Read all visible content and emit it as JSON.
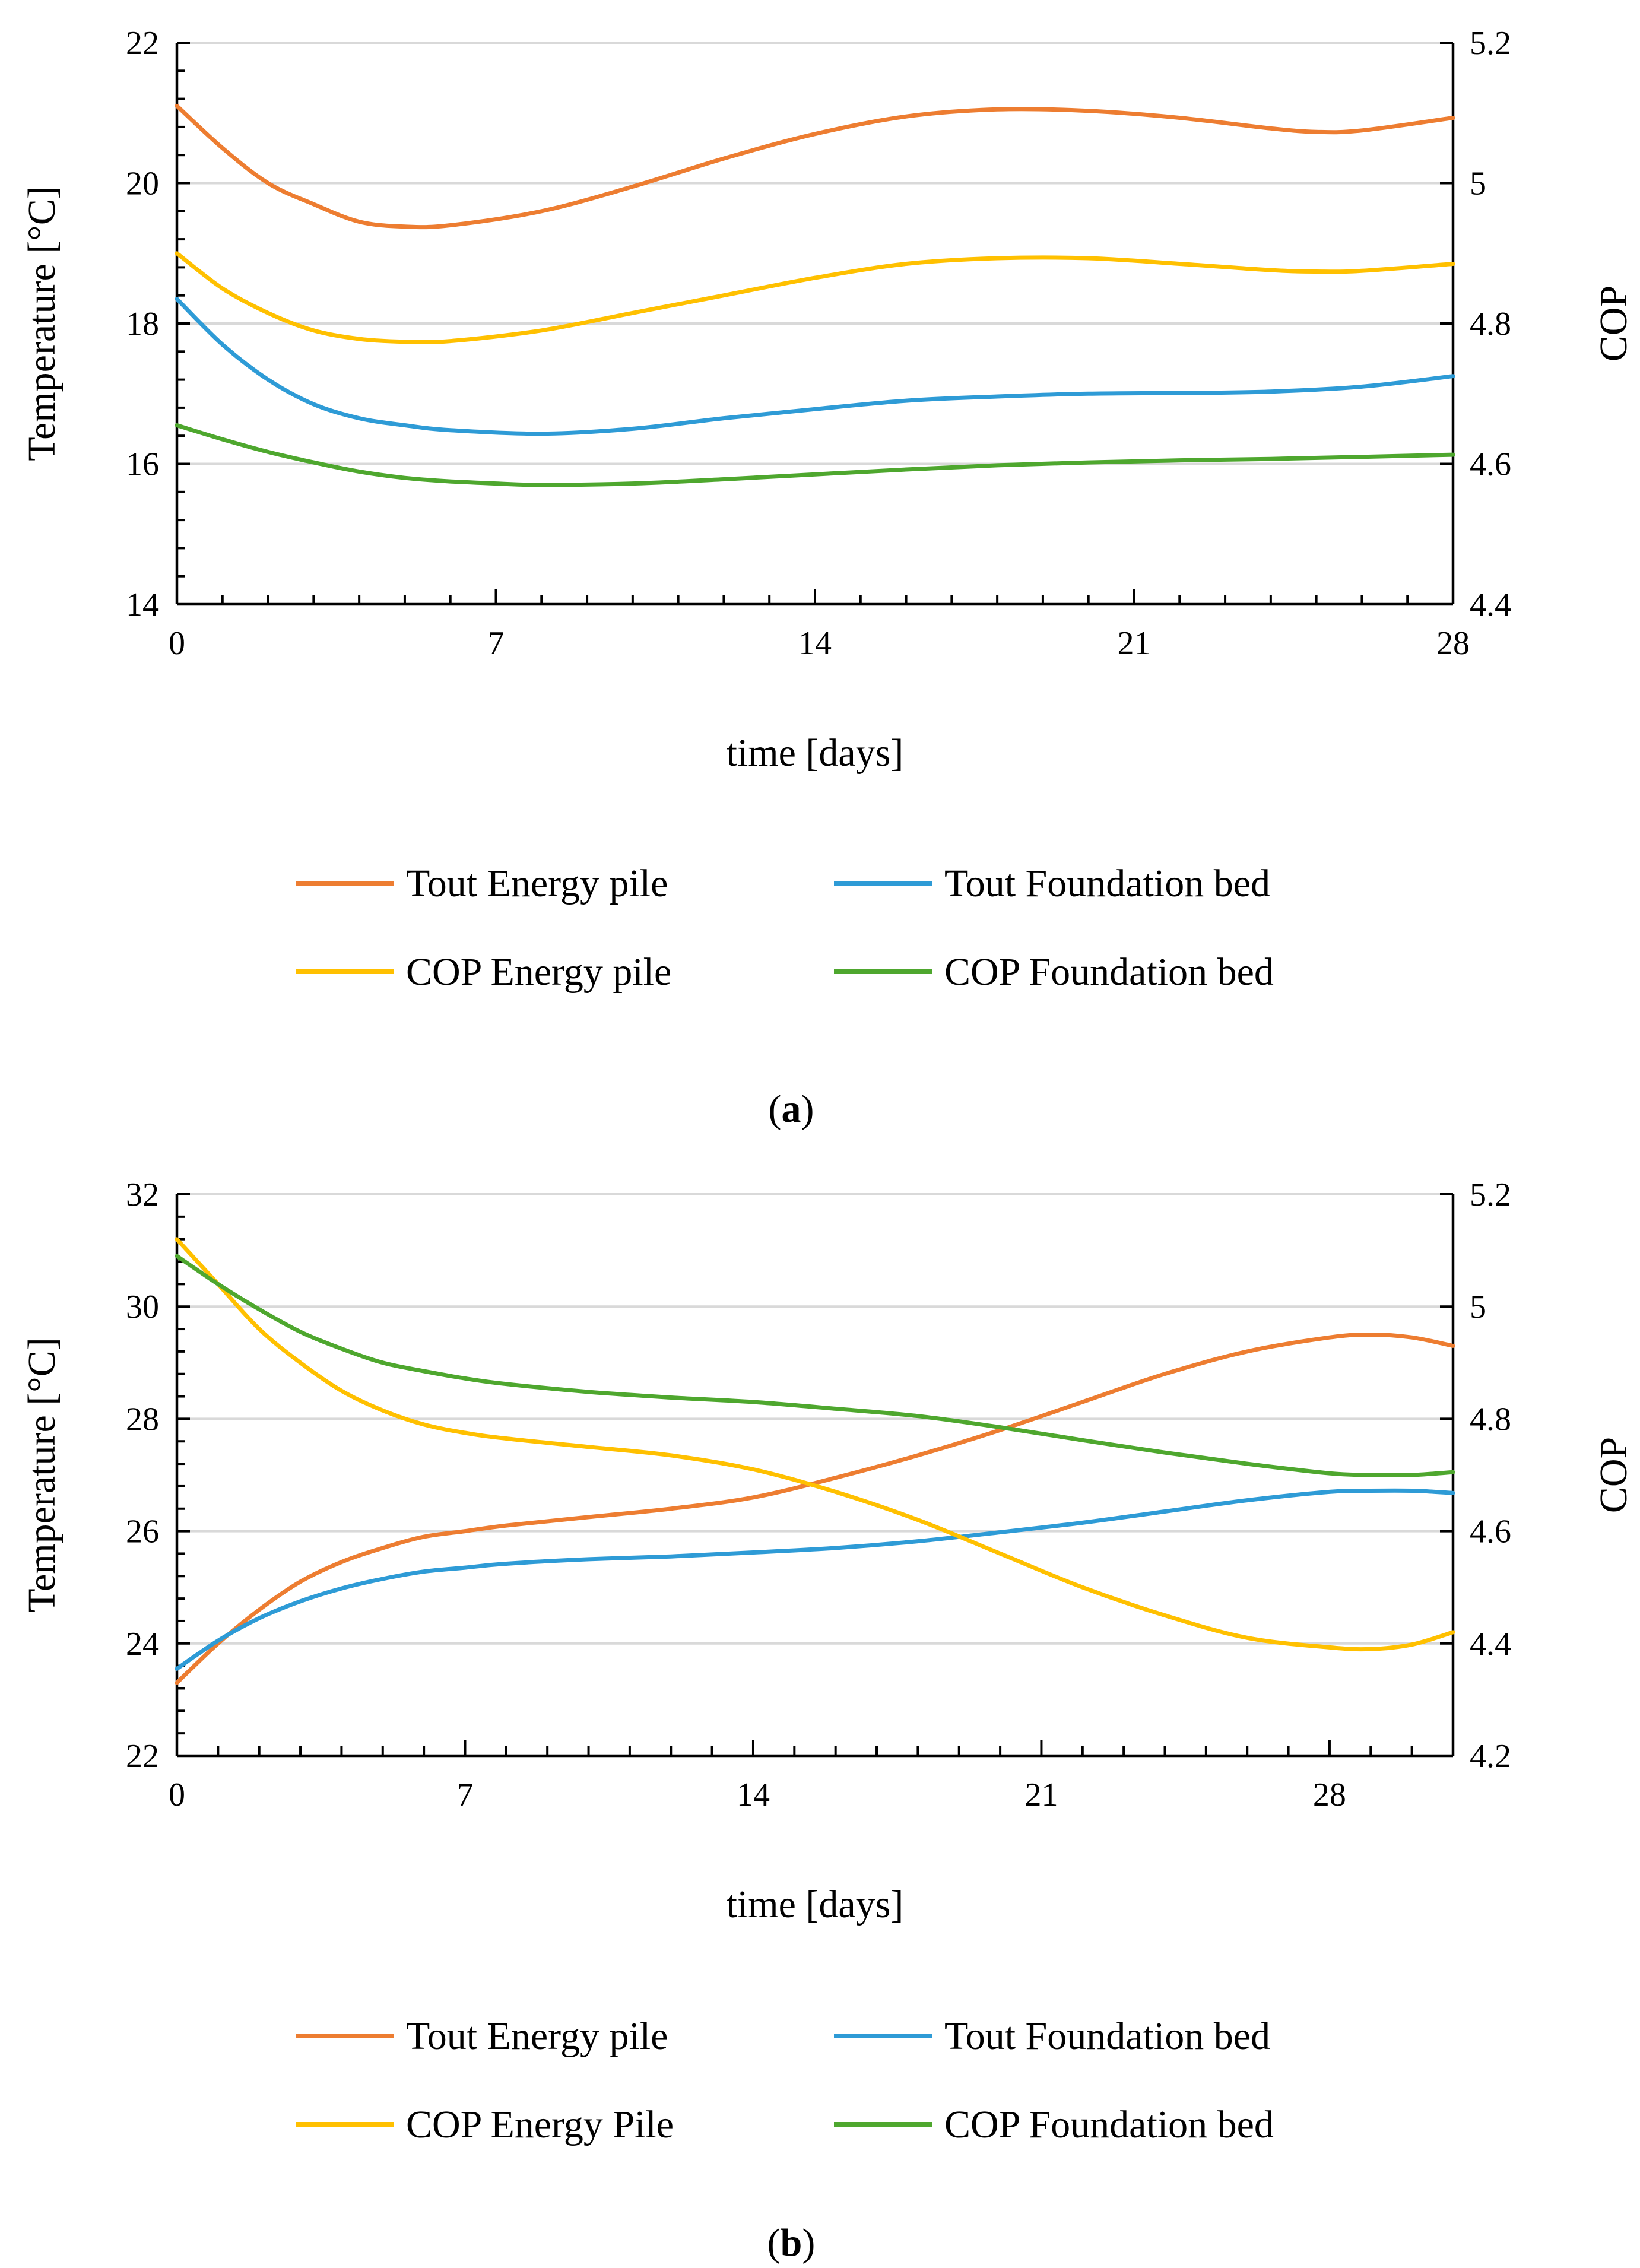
{
  "colors": {
    "tout_energy_pile": "#ED7D31",
    "tout_foundation_bed": "#2E9BD6",
    "cop_energy_pile": "#FFC000",
    "cop_foundation_bed": "#4EA72E",
    "grid": "#D9D9D9",
    "axis": "#000000"
  },
  "chart_data": [
    {
      "id": "a",
      "type": "line",
      "caption": {
        "open": "(",
        "letter": "a",
        "close": ")"
      },
      "xlabel": "time [days]",
      "ylabel": "Temperature [°C]",
      "y2label": "COP",
      "xlim": [
        0,
        28
      ],
      "xticks": [
        0,
        7,
        14,
        21,
        28
      ],
      "xtick_labels": [
        "0",
        "7",
        "14",
        "21",
        "28"
      ],
      "ylim": [
        14,
        22
      ],
      "yticks": [
        14,
        16,
        18,
        20,
        22
      ],
      "ytick_labels": [
        "14",
        "16",
        "18",
        "20",
        "22"
      ],
      "y2lim": [
        4.4,
        5.2
      ],
      "y2ticks": [
        4.4,
        4.6,
        4.8,
        5.0,
        5.2
      ],
      "y2tick_labels": [
        "4.4",
        "4.6",
        "4.8",
        "5",
        "5.2"
      ],
      "grid": true,
      "legend_position": "bottom",
      "series": [
        {
          "name": "Tout Energy pile",
          "axis": "left",
          "color_key": "tout_energy_pile",
          "x": [
            0,
            1,
            2,
            3,
            4,
            5,
            6,
            8,
            10,
            12,
            14,
            16,
            18,
            20,
            22,
            24,
            25,
            26,
            28
          ],
          "y": [
            21.1,
            20.5,
            20.0,
            19.7,
            19.45,
            19.38,
            19.4,
            19.6,
            19.95,
            20.35,
            20.7,
            20.95,
            21.05,
            21.03,
            20.93,
            20.78,
            20.73,
            20.75,
            20.93
          ]
        },
        {
          "name": "Tout Foundation bed",
          "axis": "left",
          "color_key": "tout_foundation_bed",
          "x": [
            0,
            1,
            2,
            3,
            4,
            5,
            6,
            8,
            10,
            12,
            14,
            16,
            18,
            20,
            22,
            24,
            26,
            28
          ],
          "y": [
            18.35,
            17.7,
            17.2,
            16.85,
            16.65,
            16.55,
            16.48,
            16.43,
            16.5,
            16.65,
            16.78,
            16.9,
            16.96,
            17.0,
            17.01,
            17.03,
            17.1,
            17.25
          ]
        },
        {
          "name": "COP Energy pile",
          "axis": "right",
          "color_key": "cop_energy_pile",
          "x": [
            0,
            1,
            2,
            3,
            4,
            5,
            6,
            8,
            10,
            12,
            14,
            16,
            18,
            20,
            22,
            24,
            25,
            26,
            28
          ],
          "y": [
            4.9,
            4.85,
            4.815,
            4.79,
            4.778,
            4.774,
            4.775,
            4.79,
            4.815,
            4.84,
            4.865,
            4.885,
            4.893,
            4.893,
            4.885,
            4.876,
            4.874,
            4.875,
            4.885
          ]
        },
        {
          "name": "COP Foundation bed",
          "axis": "right",
          "color_key": "cop_foundation_bed",
          "x": [
            0,
            1,
            2,
            3,
            4,
            5,
            6,
            7,
            8,
            10,
            12,
            14,
            16,
            18,
            20,
            22,
            24,
            26,
            28
          ],
          "y": [
            4.655,
            4.635,
            4.617,
            4.602,
            4.589,
            4.58,
            4.575,
            4.572,
            4.57,
            4.572,
            4.578,
            4.585,
            4.592,
            4.598,
            4.602,
            4.605,
            4.607,
            4.61,
            4.613
          ]
        }
      ],
      "legend": [
        {
          "label": "Tout Energy pile",
          "color_key": "tout_energy_pile"
        },
        {
          "label": "Tout Foundation bed",
          "color_key": "tout_foundation_bed"
        },
        {
          "label": "COP Energy pile",
          "color_key": "cop_energy_pile"
        },
        {
          "label": "COP Foundation bed",
          "color_key": "cop_foundation_bed"
        }
      ]
    },
    {
      "id": "b",
      "type": "line",
      "caption": {
        "open": "(",
        "letter": "b",
        "close": ")"
      },
      "xlabel": "time [days]",
      "ylabel": "Temperature [°C]",
      "y2label": "COP",
      "xlim": [
        0,
        31
      ],
      "xticks": [
        0,
        7,
        14,
        21,
        28
      ],
      "xtick_labels": [
        "0",
        "7",
        "14",
        "21",
        "28"
      ],
      "ylim": [
        22,
        32
      ],
      "yticks": [
        22,
        24,
        26,
        28,
        30,
        32
      ],
      "ytick_labels": [
        "22",
        "24",
        "26",
        "28",
        "30",
        "32"
      ],
      "y2lim": [
        4.2,
        5.2
      ],
      "y2ticks": [
        4.2,
        4.4,
        4.6,
        4.8,
        5.0,
        5.2
      ],
      "y2tick_labels": [
        "4.2",
        "4.4",
        "4.6",
        "4.8",
        "5",
        "5.2"
      ],
      "grid": true,
      "legend_position": "bottom",
      "series": [
        {
          "name": "Tout Energy pile",
          "axis": "left",
          "color_key": "tout_energy_pile",
          "x": [
            0,
            1,
            2,
            3,
            4,
            5,
            6,
            7,
            8,
            10,
            12,
            14,
            16,
            18,
            20,
            22,
            24,
            26,
            28,
            29,
            30,
            31
          ],
          "y": [
            23.3,
            24.0,
            24.6,
            25.1,
            25.45,
            25.7,
            25.9,
            26.0,
            26.1,
            26.25,
            26.4,
            26.6,
            26.95,
            27.35,
            27.8,
            28.3,
            28.8,
            29.2,
            29.45,
            29.5,
            29.45,
            29.3
          ]
        },
        {
          "name": "Tout Foundation bed",
          "axis": "left",
          "color_key": "tout_foundation_bed",
          "x": [
            0,
            1,
            2,
            3,
            4,
            5,
            6,
            7,
            8,
            10,
            12,
            14,
            16,
            18,
            20,
            22,
            24,
            26,
            28,
            29,
            30,
            31
          ],
          "y": [
            23.55,
            24.05,
            24.45,
            24.75,
            24.98,
            25.15,
            25.28,
            25.35,
            25.42,
            25.5,
            25.55,
            25.62,
            25.7,
            25.82,
            25.98,
            26.15,
            26.35,
            26.55,
            26.7,
            26.72,
            26.72,
            26.68
          ]
        },
        {
          "name": "COP Energy Pile",
          "axis": "right",
          "color_key": "cop_energy_pile",
          "x": [
            0,
            1,
            2,
            3,
            4,
            5,
            6,
            7,
            8,
            10,
            12,
            14,
            16,
            18,
            20,
            22,
            24,
            26,
            28,
            29,
            30,
            31
          ],
          "y": [
            5.12,
            5.04,
            4.96,
            4.9,
            4.85,
            4.815,
            4.79,
            4.775,
            4.765,
            4.75,
            4.735,
            4.71,
            4.67,
            4.62,
            4.56,
            4.5,
            4.45,
            4.41,
            4.393,
            4.39,
            4.398,
            4.42
          ]
        },
        {
          "name": "COP Foundation bed",
          "axis": "right",
          "color_key": "cop_foundation_bed",
          "x": [
            0,
            1,
            2,
            3,
            4,
            5,
            6,
            7,
            8,
            10,
            12,
            14,
            16,
            18,
            20,
            22,
            24,
            26,
            28,
            29,
            30,
            31
          ],
          "y": [
            5.09,
            5.04,
            4.995,
            4.955,
            4.925,
            4.9,
            4.885,
            4.872,
            4.862,
            4.848,
            4.838,
            4.83,
            4.818,
            4.805,
            4.785,
            4.762,
            4.74,
            4.72,
            4.703,
            4.7,
            4.7,
            4.705
          ]
        }
      ],
      "legend": [
        {
          "label": "Tout Energy pile",
          "color_key": "tout_energy_pile"
        },
        {
          "label": "Tout Foundation bed",
          "color_key": "tout_foundation_bed"
        },
        {
          "label": "COP Energy Pile",
          "color_key": "cop_energy_pile"
        },
        {
          "label": "COP Foundation bed",
          "color_key": "cop_foundation_bed"
        }
      ]
    }
  ]
}
